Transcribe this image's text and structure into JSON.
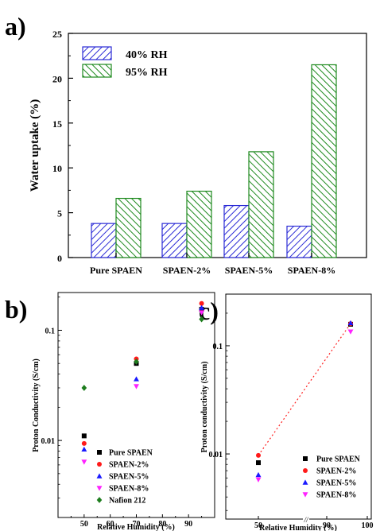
{
  "chart_data": [
    {
      "panel": "a)",
      "type": "bar",
      "categories": [
        "Pure SPAEN",
        "SPAEN-2%",
        "SPAEN-5%",
        "SPAEN-8%"
      ],
      "series": [
        {
          "name": "40% RH",
          "values": [
            3.8,
            3.8,
            5.8,
            3.5
          ],
          "color": "#2b2bd6",
          "fill_pattern": "diagonal-hatch"
        },
        {
          "name": "95% RH",
          "values": [
            6.6,
            7.4,
            11.8,
            21.5
          ],
          "color": "#1e8a1e",
          "fill_pattern": "diagonal-hatch"
        }
      ],
      "ylabel": "Water uptake (%)",
      "xlabel": "",
      "ylim": [
        0,
        25
      ],
      "yticks": [
        0,
        5,
        10,
        15,
        20,
        25
      ],
      "legend": "top-left",
      "grid": false
    },
    {
      "panel": "b)",
      "type": "scatter",
      "xlabel": "Relative Humidity (%)",
      "ylabel": "Proton Conductivity (S/cm)",
      "xlim": [
        40,
        100
      ],
      "xticks": [
        40,
        50,
        60,
        70,
        80,
        90,
        100
      ],
      "ylim": [
        0.002,
        0.22
      ],
      "yscale": "log",
      "yticks": [
        0.01,
        0.1
      ],
      "ytick_labels": [
        "0.01",
        "0.1"
      ],
      "legend": "bottom-right",
      "grid": false,
      "series": [
        {
          "name": "Pure SPAEN",
          "marker": "square",
          "color": "#000000",
          "x": [
            50,
            70,
            95
          ],
          "y": [
            0.011,
            0.05,
            0.155
          ]
        },
        {
          "name": "SPAEN-2%",
          "marker": "circle",
          "color": "#ff1a1a",
          "x": [
            50,
            70,
            95
          ],
          "y": [
            0.0094,
            0.055,
            0.175
          ]
        },
        {
          "name": "SPAEN-5%",
          "marker": "triangle-up",
          "color": "#1a1aff",
          "x": [
            50,
            70,
            95
          ],
          "y": [
            0.0083,
            0.036,
            0.16
          ]
        },
        {
          "name": "SPAEN-8%",
          "marker": "triangle-down",
          "color": "#ff22ff",
          "x": [
            50,
            70,
            95
          ],
          "y": [
            0.0064,
            0.031,
            0.145
          ]
        },
        {
          "name": "Nafion 212",
          "marker": "diamond",
          "color": "#1e7d1e",
          "x": [
            50,
            70,
            95
          ],
          "y": [
            0.03,
            0.052,
            0.126
          ]
        }
      ]
    },
    {
      "panel": "c)",
      "type": "scatter",
      "xlabel": "Relative Humidity (%)",
      "ylabel": "Proton conductivity (S/cm)",
      "xticks": [
        50,
        90,
        100
      ],
      "axis_break": "//",
      "yscale": "log",
      "ylim": [
        0.0025,
        0.3
      ],
      "yticks": [
        0.01,
        0.1
      ],
      "ytick_labels": [
        "0.01",
        "0.1"
      ],
      "legend": "bottom-right",
      "grid": false,
      "trend_line": {
        "style": "dotted",
        "color": "#ff2020",
        "from": [
          50,
          0.0097
        ],
        "to": [
          95,
          0.16
        ]
      },
      "series": [
        {
          "name": "Pure SPAEN",
          "marker": "square",
          "color": "#000000",
          "x": [
            50,
            95
          ],
          "y": [
            0.0083,
            0.158
          ]
        },
        {
          "name": "SPAEN-2%",
          "marker": "circle",
          "color": "#ff1a1a",
          "x": [
            50,
            95
          ],
          "y": [
            0.0097,
            0.16
          ]
        },
        {
          "name": "SPAEN-5%",
          "marker": "triangle-up",
          "color": "#1a1aff",
          "x": [
            50,
            95
          ],
          "y": [
            0.0064,
            0.162
          ]
        },
        {
          "name": "SPAEN-8%",
          "marker": "triangle-down",
          "color": "#ff22ff",
          "x": [
            50,
            95
          ],
          "y": [
            0.0058,
            0.135
          ]
        }
      ]
    }
  ]
}
